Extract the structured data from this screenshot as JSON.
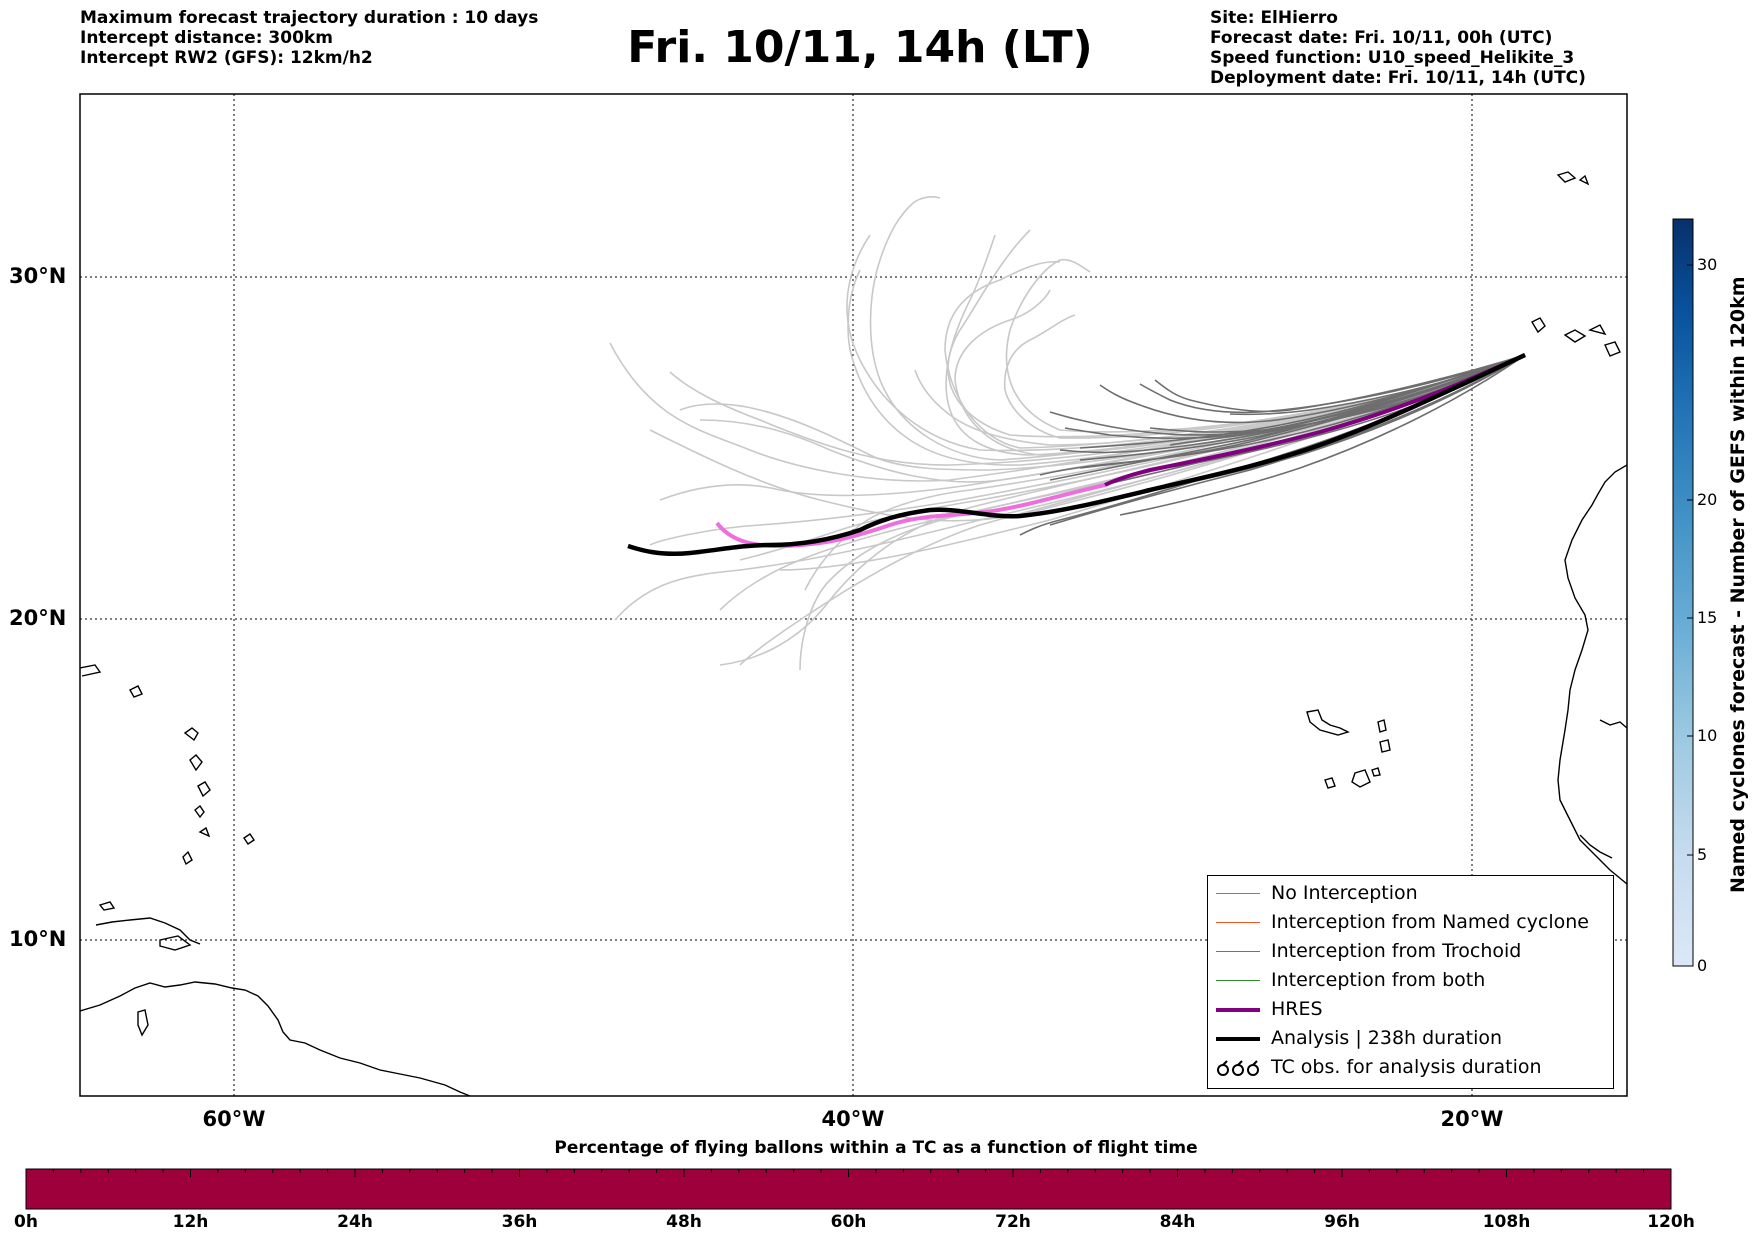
{
  "header": {
    "left_lines": [
      "Maximum forecast trajectory duration : 10 days",
      "Intercept distance: 300km",
      "Intercept RW2 (GFS):  12km/h2"
    ],
    "title": "Fri. 10/11, 14h (LT)",
    "right_lines": [
      "Site: ElHierro",
      "Forecast date: Fri. 10/11, 00h (UTC)",
      "Speed function: U10_speed_Helikite_3",
      "Deployment date: Fri. 10/11, 14h (UTC)"
    ]
  },
  "map": {
    "lat_labels": [
      "30°N",
      "20°N",
      "10°N"
    ],
    "lon_labels": [
      "60°W",
      "40°W",
      "20°W"
    ]
  },
  "legend": {
    "items": [
      {
        "label": "No Interception",
        "color": "#808080",
        "style": "thin"
      },
      {
        "label": "Interception from Named cyclone",
        "color": "#f05a1e",
        "style": "thin"
      },
      {
        "label": "Interception from Trochoid",
        "color": "#808000",
        "style": "thin"
      },
      {
        "label": "Interception from both",
        "color": "#2e8b2e",
        "style": "thin"
      },
      {
        "label": "HRES",
        "color": "#800080",
        "style": "thick"
      },
      {
        "label": "Analysis | 238h duration",
        "color": "#000000",
        "style": "thick"
      },
      {
        "label": "TC obs. for analysis duration",
        "color": "#000000",
        "style": "symbol"
      }
    ]
  },
  "colorbar": {
    "label": "Named cyclones forecast - Number of GEFS within 120km",
    "ticks": [
      "0",
      "5",
      "10",
      "15",
      "20",
      "30"
    ],
    "colors": [
      "#dbe8f6",
      "#c6dbef",
      "#9ecae1",
      "#6baed6",
      "#4292c6",
      "#2171b5",
      "#08519c",
      "#08306b"
    ]
  },
  "bottom_bar": {
    "title": "Percentage of flying ballons within a TC as a function of flight time",
    "color": "#9e003c",
    "ticks": [
      "0h",
      "12h",
      "24h",
      "36h",
      "48h",
      "60h",
      "72h",
      "84h",
      "96h",
      "108h",
      "120h"
    ]
  }
}
